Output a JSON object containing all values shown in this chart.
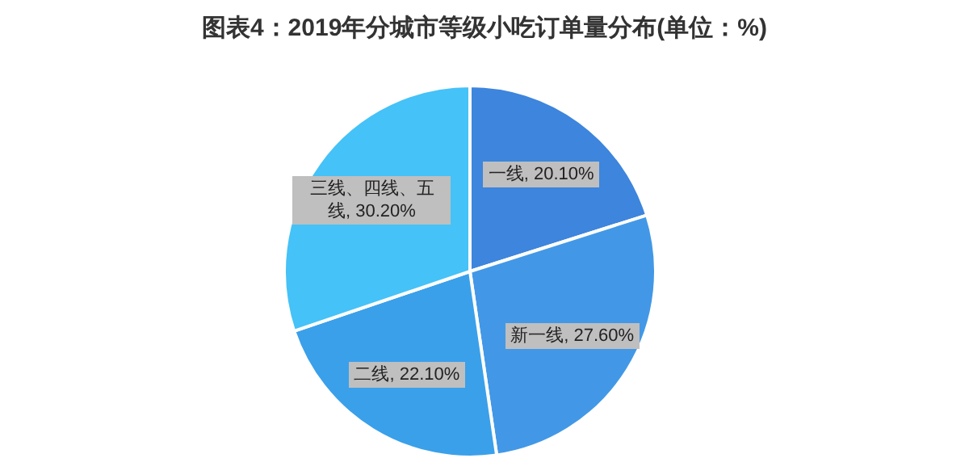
{
  "chart_data": {
    "type": "pie",
    "title": "图表4：2019年分城市等级小吃订单量分布(单位：%)",
    "categories": [
      "一线",
      "新一线",
      "二线",
      "三线、四线、五线"
    ],
    "values": [
      20.1,
      27.6,
      22.1,
      30.2
    ],
    "value_labels": [
      "20.10%",
      "27.60%",
      "22.10%",
      "30.20%"
    ],
    "colors": [
      "#3d85dd",
      "#4298e6",
      "#3aa0ea",
      "#45c2f7"
    ]
  }
}
